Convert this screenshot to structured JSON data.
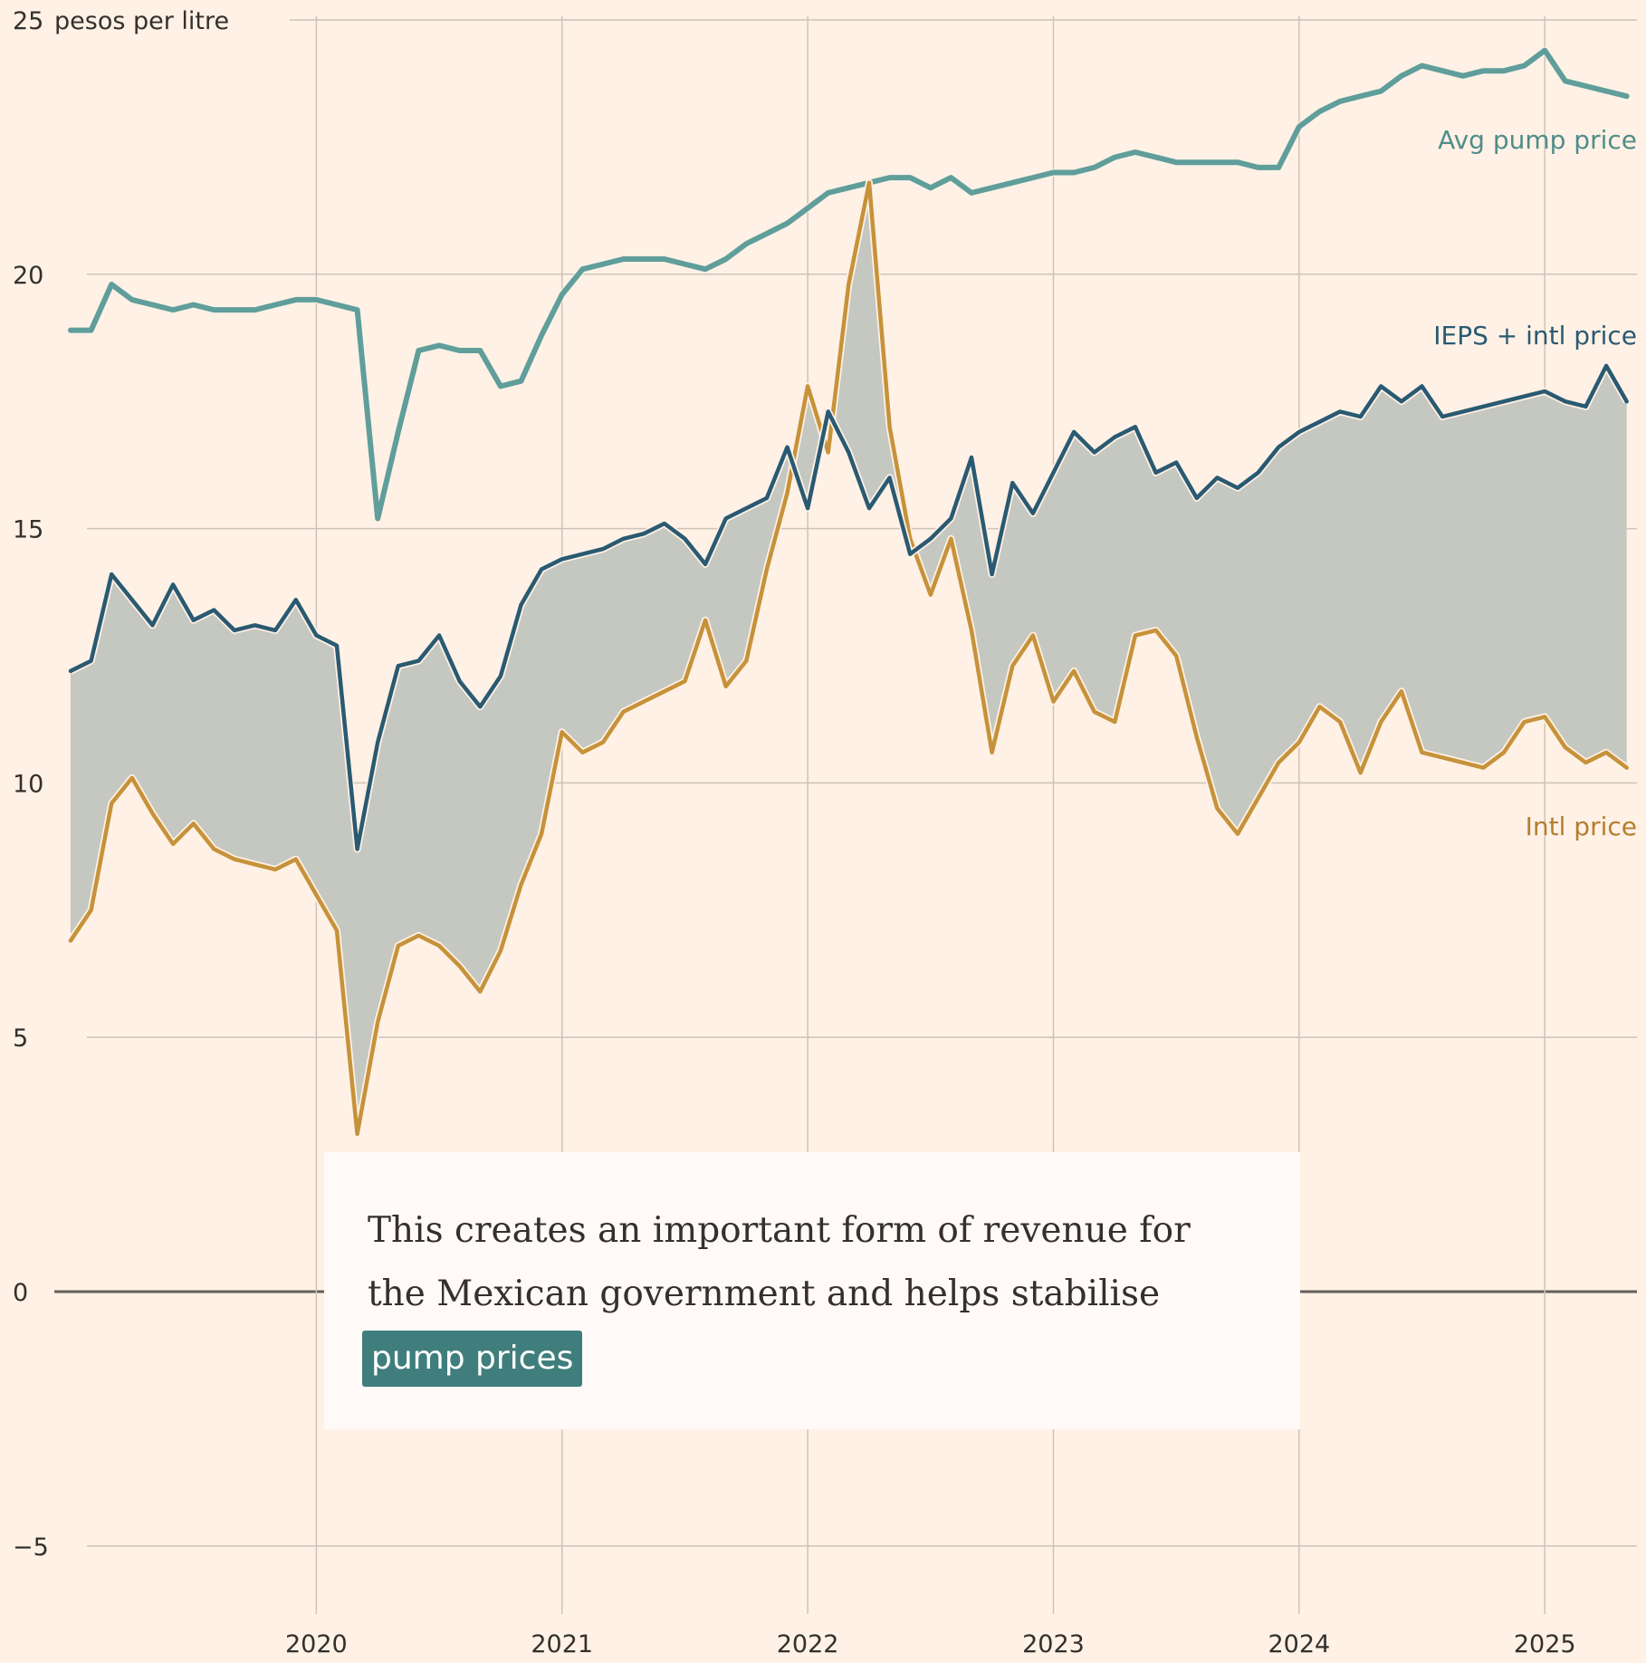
{
  "chart_data": {
    "type": "line",
    "ylabel": "pesos per litre",
    "ylim": [
      -6,
      25
    ],
    "xlim": [
      "2019-01-01",
      "2025-06-01"
    ],
    "y_ticks": [
      {
        "value": 25,
        "label": "25"
      },
      {
        "value": 20,
        "label": "20"
      },
      {
        "value": 15,
        "label": "15"
      },
      {
        "value": 10,
        "label": "10"
      },
      {
        "value": 5,
        "label": "5"
      },
      {
        "value": 0,
        "label": "0"
      },
      {
        "value": -5,
        "label": "−5"
      }
    ],
    "x_ticks": [
      "2020",
      "2021",
      "2022",
      "2023",
      "2024",
      "2025"
    ],
    "grid": true,
    "shaded_area_between": [
      "IEPS + intl price",
      "Intl price"
    ],
    "series": [
      {
        "name": "Avg pump price",
        "color": "#5F9E9B",
        "x": [
          "2019-01",
          "2019-02",
          "2019-03",
          "2019-04",
          "2019-05",
          "2019-06",
          "2019-07",
          "2019-08",
          "2019-09",
          "2019-10",
          "2019-11",
          "2019-12",
          "2020-01",
          "2020-02",
          "2020-03",
          "2020-04",
          "2020-05",
          "2020-06",
          "2020-07",
          "2020-08",
          "2020-09",
          "2020-10",
          "2020-11",
          "2020-12",
          "2021-01",
          "2021-02",
          "2021-03",
          "2021-04",
          "2021-05",
          "2021-06",
          "2021-07",
          "2021-08",
          "2021-09",
          "2021-10",
          "2021-11",
          "2021-12",
          "2022-01",
          "2022-02",
          "2022-03",
          "2022-04",
          "2022-05",
          "2022-06",
          "2022-07",
          "2022-08",
          "2022-09",
          "2022-10",
          "2022-11",
          "2022-12",
          "2023-01",
          "2023-02",
          "2023-03",
          "2023-04",
          "2023-05",
          "2023-06",
          "2023-07",
          "2023-08",
          "2023-09",
          "2023-10",
          "2023-11",
          "2023-12",
          "2024-01",
          "2024-02",
          "2024-03",
          "2024-04",
          "2024-05",
          "2024-06",
          "2024-07",
          "2024-08",
          "2024-09",
          "2024-10",
          "2024-11",
          "2024-12",
          "2025-01",
          "2025-02",
          "2025-03",
          "2025-04",
          "2025-05"
        ],
        "values": [
          18.9,
          18.9,
          19.8,
          19.5,
          19.4,
          19.3,
          19.4,
          19.3,
          19.3,
          19.3,
          19.4,
          19.5,
          19.5,
          19.4,
          19.3,
          15.2,
          16.9,
          18.5,
          18.6,
          18.5,
          18.5,
          17.8,
          17.9,
          18.8,
          19.6,
          20.1,
          20.2,
          20.3,
          20.3,
          20.3,
          20.2,
          20.1,
          20.3,
          20.6,
          20.8,
          21.0,
          21.3,
          21.6,
          21.7,
          21.8,
          21.9,
          21.9,
          21.7,
          21.9,
          21.6,
          21.7,
          21.8,
          21.9,
          22.0,
          22.0,
          22.1,
          22.3,
          22.4,
          22.3,
          22.2,
          22.2,
          22.2,
          22.2,
          22.1,
          22.1,
          22.9,
          23.2,
          23.4,
          23.5,
          23.6,
          23.9,
          24.1,
          24.0,
          23.9,
          24.0,
          24.0,
          24.1,
          24.4,
          23.8,
          23.7,
          23.6,
          23.5
        ]
      },
      {
        "name": "IEPS + intl price",
        "color": "#2A5A72",
        "x": [
          "2019-01",
          "2019-02",
          "2019-03",
          "2019-04",
          "2019-05",
          "2019-06",
          "2019-07",
          "2019-08",
          "2019-09",
          "2019-10",
          "2019-11",
          "2019-12",
          "2020-01",
          "2020-02",
          "2020-03",
          "2020-04",
          "2020-05",
          "2020-06",
          "2020-07",
          "2020-08",
          "2020-09",
          "2020-10",
          "2020-11",
          "2020-12",
          "2021-01",
          "2021-02",
          "2021-03",
          "2021-04",
          "2021-05",
          "2021-06",
          "2021-07",
          "2021-08",
          "2021-09",
          "2021-10",
          "2021-11",
          "2021-12",
          "2022-01",
          "2022-02",
          "2022-03",
          "2022-04",
          "2022-05",
          "2022-06",
          "2022-07",
          "2022-08",
          "2022-09",
          "2022-10",
          "2022-11",
          "2022-12",
          "2023-01",
          "2023-02",
          "2023-03",
          "2023-04",
          "2023-05",
          "2023-06",
          "2023-07",
          "2023-08",
          "2023-09",
          "2023-10",
          "2023-11",
          "2023-12",
          "2024-01",
          "2024-02",
          "2024-03",
          "2024-04",
          "2024-05",
          "2024-06",
          "2024-07",
          "2024-08",
          "2024-09",
          "2024-10",
          "2024-11",
          "2024-12",
          "2025-01",
          "2025-02",
          "2025-03",
          "2025-04",
          "2025-05"
        ],
        "values": [
          12.2,
          12.4,
          14.1,
          13.6,
          13.1,
          13.9,
          13.2,
          13.4,
          13.0,
          13.1,
          13.0,
          13.6,
          12.9,
          12.7,
          8.7,
          10.8,
          12.3,
          12.4,
          12.9,
          12.0,
          11.5,
          12.1,
          13.5,
          14.2,
          14.4,
          14.5,
          14.6,
          14.8,
          14.9,
          15.1,
          14.8,
          14.3,
          15.2,
          15.4,
          15.6,
          16.6,
          15.4,
          17.3,
          16.5,
          15.4,
          16.0,
          14.5,
          14.8,
          15.2,
          16.4,
          14.1,
          15.9,
          15.3,
          16.1,
          16.9,
          16.5,
          16.8,
          17.0,
          16.1,
          16.3,
          15.6,
          16.0,
          15.8,
          16.1,
          16.6,
          16.9,
          17.1,
          17.3,
          17.2,
          17.8,
          17.5,
          17.8,
          17.2,
          17.3,
          17.4,
          17.5,
          17.6,
          17.7,
          17.5,
          17.4,
          18.2,
          17.5
        ]
      },
      {
        "name": "Intl price",
        "color": "#C6923A",
        "x": [
          "2019-01",
          "2019-02",
          "2019-03",
          "2019-04",
          "2019-05",
          "2019-06",
          "2019-07",
          "2019-08",
          "2019-09",
          "2019-10",
          "2019-11",
          "2019-12",
          "2020-01",
          "2020-02",
          "2020-03",
          "2020-04",
          "2020-05",
          "2020-06",
          "2020-07",
          "2020-08",
          "2020-09",
          "2020-10",
          "2020-11",
          "2020-12",
          "2021-01",
          "2021-02",
          "2021-03",
          "2021-04",
          "2021-05",
          "2021-06",
          "2021-07",
          "2021-08",
          "2021-09",
          "2021-10",
          "2021-11",
          "2021-12",
          "2022-01",
          "2022-02",
          "2022-03",
          "2022-04",
          "2022-05",
          "2022-06",
          "2022-07",
          "2022-08",
          "2022-09",
          "2022-10",
          "2022-11",
          "2022-12",
          "2023-01",
          "2023-02",
          "2023-03",
          "2023-04",
          "2023-05",
          "2023-06",
          "2023-07",
          "2023-08",
          "2023-09",
          "2023-10",
          "2023-11",
          "2023-12",
          "2024-01",
          "2024-02",
          "2024-03",
          "2024-04",
          "2024-05",
          "2024-06",
          "2024-07",
          "2024-08",
          "2024-09",
          "2024-10",
          "2024-11",
          "2024-12",
          "2025-01",
          "2025-02",
          "2025-03",
          "2025-04",
          "2025-05"
        ],
        "values": [
          6.9,
          7.5,
          9.6,
          10.1,
          9.4,
          8.8,
          9.2,
          8.7,
          8.5,
          8.4,
          8.3,
          8.5,
          7.8,
          7.1,
          3.1,
          5.3,
          6.8,
          7.0,
          6.8,
          6.4,
          5.9,
          6.7,
          8.0,
          9.0,
          11.0,
          10.6,
          10.8,
          11.4,
          11.6,
          11.8,
          12.0,
          13.2,
          11.9,
          12.4,
          14.2,
          15.7,
          17.8,
          16.5,
          19.8,
          21.8,
          17.0,
          14.8,
          13.7,
          14.8,
          13.0,
          10.6,
          12.3,
          12.9,
          11.6,
          12.2,
          11.4,
          11.2,
          12.9,
          13.0,
          12.5,
          10.9,
          9.5,
          9.0,
          9.7,
          10.4,
          10.8,
          11.5,
          11.2,
          10.2,
          11.2,
          11.8,
          10.6,
          10.5,
          10.4,
          10.3,
          10.6,
          11.2,
          11.3,
          10.7,
          10.4,
          10.6,
          10.3
        ]
      }
    ]
  },
  "annotation": {
    "text": "This creates an important form of revenue for the Mexican government and helps stabilise",
    "highlight": "pump prices",
    "highlight_color": "#3F7E7C"
  }
}
